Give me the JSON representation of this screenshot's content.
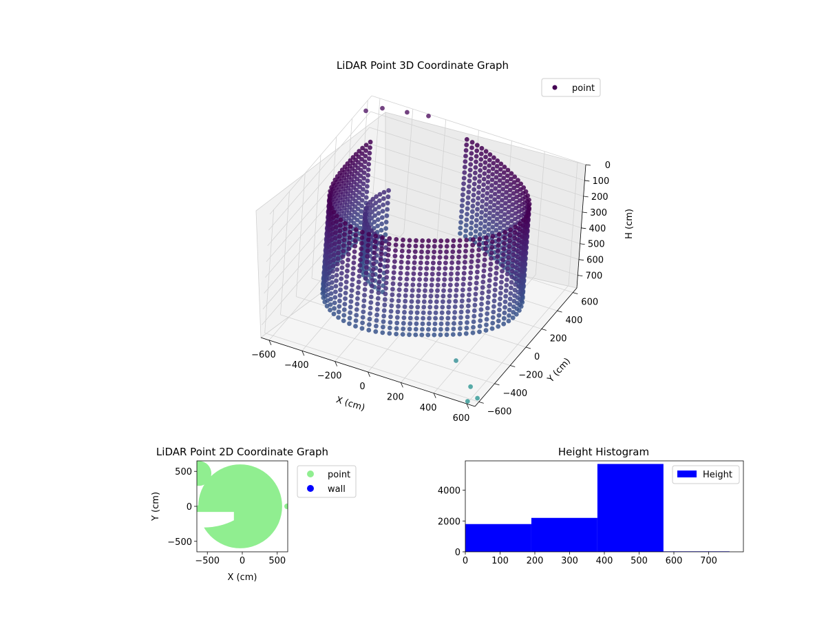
{
  "chart_data": [
    {
      "type": "scatter",
      "projection": "3d",
      "title": "LiDAR Point 3D Coordinate Graph",
      "xlabel": "X (cm)",
      "ylabel": "Y (cm)",
      "zlabel": "H (cm)",
      "xlim": [
        -650,
        650
      ],
      "ylim": [
        -650,
        650
      ],
      "zlim": [
        0,
        780
      ],
      "z_inverted": true,
      "xticks": [
        "−600",
        "−400",
        "−200",
        "0",
        "200",
        "400",
        "600"
      ],
      "yticks": [
        "−600",
        "−400",
        "−200",
        "0",
        "200",
        "400",
        "600"
      ],
      "zticks": [
        "0",
        "100",
        "200",
        "300",
        "400",
        "500",
        "600",
        "700"
      ],
      "colormap": "viridis",
      "grid": true,
      "legend": {
        "position": "top-right",
        "entries": [
          {
            "label": "point",
            "color": "#440154"
          }
        ]
      },
      "series": [
        {
          "name": "point",
          "shape": "ring-wall",
          "radius_cm": 580,
          "height_range_cm": [
            0,
            620
          ],
          "opening_angle_deg": [
            95,
            150
          ],
          "outliers": [
            {
              "x": -640,
              "y": 560,
              "h": 40
            },
            {
              "x": -560,
              "y": 600,
              "h": 20
            },
            {
              "x": -420,
              "y": 620,
              "h": 10
            },
            {
              "x": -300,
              "y": 640,
              "h": 5
            },
            {
              "x": 560,
              "y": -520,
              "h": 760
            },
            {
              "x": 640,
              "y": -600,
              "h": 760
            },
            {
              "x": 420,
              "y": -420,
              "h": 700
            },
            {
              "x": 600,
              "y": -640,
              "h": 770
            }
          ]
        }
      ]
    },
    {
      "type": "scatter",
      "title": "LiDAR Point 2D Coordinate Graph",
      "xlabel": "X (cm)",
      "ylabel": "Y (cm)",
      "xlim": [
        -650,
        650
      ],
      "ylim": [
        -650,
        650
      ],
      "xticks": [
        -500,
        0,
        500
      ],
      "yticks": [
        -500,
        0,
        500
      ],
      "legend": {
        "position": "outside-right",
        "entries": [
          {
            "label": "point",
            "color": "#90ee90"
          },
          {
            "label": "wall",
            "color": "#0000ff"
          }
        ]
      },
      "series": [
        {
          "name": "point",
          "color": "#90ee90",
          "shape": "disk",
          "center": [
            -30,
            0
          ],
          "radius_cm": 600
        },
        {
          "name": "wall",
          "color": "#0000ff",
          "points": []
        }
      ]
    },
    {
      "type": "bar",
      "subtype": "histogram",
      "title": "Height Histogram",
      "xlabel": "",
      "ylabel": "",
      "xlim": [
        0,
        800
      ],
      "ylim": [
        0,
        5900
      ],
      "xticks": [
        0,
        100,
        200,
        300,
        400,
        500,
        600,
        700
      ],
      "yticks": [
        0,
        2000,
        4000
      ],
      "color": "#0000ff",
      "legend": {
        "position": "top-right",
        "entries": [
          {
            "label": "Height",
            "color": "#0000ff"
          }
        ]
      },
      "bins": [
        {
          "start": 0,
          "end": 190,
          "count": 1800
        },
        {
          "start": 190,
          "end": 380,
          "count": 2200
        },
        {
          "start": 380,
          "end": 570,
          "count": 5700
        },
        {
          "start": 570,
          "end": 760,
          "count": 30
        }
      ]
    }
  ]
}
